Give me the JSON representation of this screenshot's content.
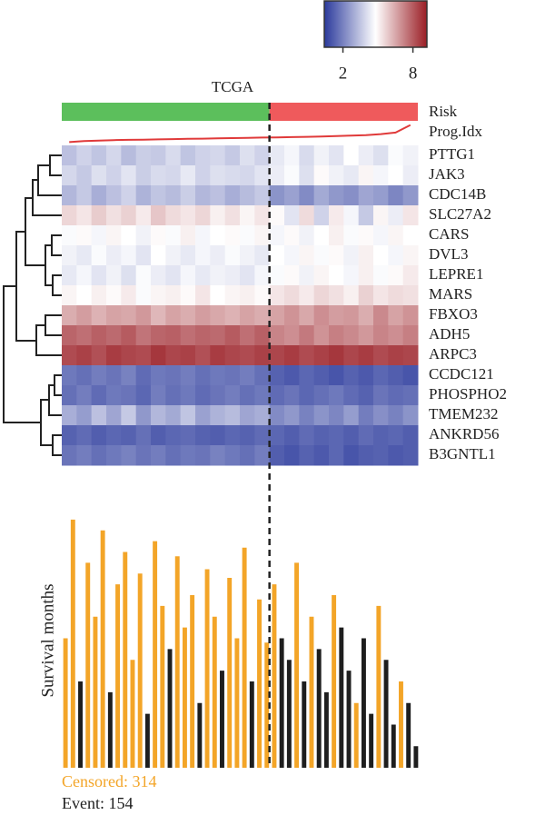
{
  "chart_data": {
    "type": "heatmap",
    "title": "TCGA",
    "colorbar": {
      "colors": [
        "#2b3a9c",
        "#ffffff",
        "#9a1d24"
      ],
      "lim": [
        0.4,
        9.2
      ],
      "ticks": [
        2,
        8
      ]
    },
    "risk": {
      "label": "Risk",
      "colors": [
        "#5cbf5c",
        "#ef5a5c"
      ],
      "low_risk_columns": 14
    },
    "prog_idx": {
      "label": "Prog.Idx",
      "color": "#e03a3a",
      "ylim": [
        -1,
        2.6
      ],
      "values": [
        -0.9,
        -0.7,
        -0.6,
        -0.5,
        -0.45,
        -0.4,
        -0.35,
        -0.3,
        -0.25,
        -0.2,
        -0.15,
        -0.1,
        -0.05,
        0,
        0.05,
        0.1,
        0.15,
        0.2,
        0.3,
        0.4,
        0.5,
        0.7,
        1.0,
        2.5
      ]
    },
    "genes": [
      "PTTG1",
      "JAK3",
      "CDC14B",
      "SLC27A2",
      "CARS",
      "DVL3",
      "LEPRE1",
      "MARS",
      "FBXO3",
      "ADH5",
      "ARPC3",
      "CCDC121",
      "PHOSPHO2",
      "TMEM232",
      "ANKRD56",
      "B3GNTL1"
    ],
    "values": [
      [
        3.4,
        3.8,
        3.5,
        3.9,
        3.3,
        3.7,
        3.6,
        4.0,
        3.5,
        3.8,
        3.9,
        3.6,
        4.1,
        3.8,
        4.3,
        4.6,
        4.0,
        4.5,
        4.2,
        4.8,
        4.4,
        4.1,
        4.7,
        4.5
      ],
      [
        3.9,
        3.6,
        4.1,
        3.8,
        4.2,
        3.7,
        4.0,
        3.9,
        4.3,
        3.8,
        4.1,
        4.0,
        3.9,
        4.2,
        4.4,
        4.7,
        4.1,
        4.9,
        4.5,
        4.3,
        5.0,
        4.6,
        4.8,
        4.4
      ],
      [
        3.2,
        3.6,
        3.0,
        3.4,
        3.8,
        3.1,
        3.5,
        3.3,
        3.7,
        3.2,
        3.4,
        3.0,
        3.3,
        3.6,
        2.4,
        2.7,
        2.2,
        2.9,
        2.5,
        2.3,
        2.8,
        2.6,
        2.1,
        2.5
      ],
      [
        5.6,
        5.3,
        5.8,
        5.4,
        5.7,
        5.2,
        5.9,
        5.5,
        5.3,
        5.6,
        5.1,
        5.4,
        5.0,
        5.3,
        4.9,
        4.2,
        5.5,
        3.8,
        5.2,
        4.6,
        3.6,
        5.0,
        4.4,
        5.3
      ],
      [
        4.7,
        4.9,
        4.6,
        5.0,
        4.8,
        4.5,
        4.9,
        4.7,
        5.1,
        4.6,
        4.8,
        4.9,
        4.7,
        5.0,
        4.6,
        4.9,
        4.5,
        4.8,
        5.1,
        4.7,
        4.9,
        4.6,
        5.0,
        4.8
      ],
      [
        4.5,
        4.3,
        4.7,
        4.4,
        4.6,
        4.2,
        4.8,
        4.5,
        4.3,
        4.6,
        4.4,
        4.7,
        4.5,
        4.3,
        4.8,
        4.6,
        5.0,
        4.7,
        4.9,
        4.5,
        5.1,
        4.8,
        4.6,
        5.0
      ],
      [
        4.3,
        4.6,
        4.2,
        4.5,
        4.1,
        4.7,
        4.4,
        4.2,
        4.6,
        4.3,
        4.5,
        4.4,
        4.2,
        4.6,
        4.7,
        4.9,
        4.5,
        5.0,
        4.8,
        4.6,
        5.1,
        4.7,
        4.9,
        5.2
      ],
      [
        5.0,
        4.8,
        5.1,
        4.9,
        5.2,
        4.7,
        5.0,
        5.1,
        4.9,
        5.3,
        4.8,
        5.0,
        5.1,
        4.9,
        5.3,
        5.5,
        5.2,
        5.6,
        5.4,
        5.1,
        5.7,
        5.3,
        5.5,
        5.4
      ],
      [
        6.4,
        6.7,
        6.3,
        6.6,
        6.5,
        6.8,
        6.2,
        6.6,
        6.4,
        6.7,
        6.5,
        6.3,
        6.6,
        6.4,
        6.6,
        6.9,
        6.5,
        7.0,
        6.7,
        6.8,
        6.4,
        7.1,
        6.6,
        6.9
      ],
      [
        7.8,
        7.6,
        7.9,
        7.7,
        8.0,
        7.5,
        7.8,
        7.9,
        7.6,
        7.8,
        7.7,
        8.0,
        7.6,
        7.9,
        7.2,
        7.0,
        7.4,
        6.9,
        7.3,
        7.1,
        6.8,
        7.2,
        7.0,
        7.3
      ],
      [
        8.3,
        8.5,
        8.2,
        8.6,
        8.4,
        8.3,
        8.7,
        8.4,
        8.5,
        8.2,
        8.6,
        8.4,
        8.3,
        8.5,
        8.4,
        8.6,
        8.3,
        8.5,
        8.7,
        8.4,
        8.6,
        8.3,
        8.5,
        8.4
      ],
      [
        1.8,
        1.6,
        1.9,
        1.7,
        2.0,
        1.5,
        1.8,
        1.7,
        1.9,
        1.6,
        1.8,
        1.7,
        1.9,
        1.6,
        1.3,
        1.1,
        1.4,
        1.2,
        1.0,
        1.3,
        1.1,
        1.4,
        1.2,
        1.0
      ],
      [
        1.6,
        1.9,
        1.5,
        1.8,
        1.7,
        1.4,
        1.9,
        1.6,
        1.8,
        1.5,
        1.7,
        1.9,
        1.6,
        1.8,
        1.5,
        1.7,
        1.4,
        1.6,
        1.8,
        1.5,
        1.3,
        1.7,
        1.5,
        1.6
      ],
      [
        3.0,
        2.6,
        3.4,
        2.8,
        3.6,
        2.5,
        3.2,
        2.9,
        3.5,
        2.7,
        3.1,
        3.3,
        2.8,
        3.0,
        2.2,
        2.5,
        2.0,
        2.4,
        2.1,
        2.6,
        1.9,
        2.3,
        2.0,
        2.4
      ],
      [
        1.3,
        1.5,
        1.2,
        1.4,
        1.3,
        1.6,
        1.2,
        1.4,
        1.5,
        1.3,
        1.2,
        1.4,
        1.3,
        1.5,
        1.4,
        1.2,
        1.5,
        1.3,
        1.4,
        1.2,
        1.5,
        1.3,
        1.4,
        1.2
      ],
      [
        1.7,
        1.9,
        1.6,
        1.8,
        2.0,
        1.7,
        1.9,
        1.6,
        1.8,
        1.7,
        2.0,
        1.8,
        1.6,
        1.9,
        1.2,
        1.0,
        1.3,
        1.1,
        1.4,
        1.0,
        1.2,
        1.3,
        1.1,
        1.2
      ]
    ],
    "survival": {
      "type": "bar",
      "ylabel": "Survival months",
      "ylim": [
        0,
        120
      ],
      "series": [
        {
          "name": "Censored: 314",
          "color": "#f3a528",
          "values": [
            60,
            115,
            null,
            95,
            70,
            110,
            null,
            85,
            100,
            50,
            90,
            null,
            105,
            75,
            null,
            98,
            65,
            80,
            null,
            92,
            70,
            null,
            88,
            60,
            102,
            null,
            78,
            58,
            85,
            null,
            null,
            95,
            null,
            70,
            null,
            null,
            80,
            null,
            null,
            30,
            null,
            null,
            75,
            null,
            null,
            40,
            null,
            null
          ]
        },
        {
          "name": "Event: 154",
          "color": "#1e1e1e",
          "values": [
            null,
            null,
            40,
            null,
            null,
            null,
            35,
            null,
            null,
            null,
            null,
            25,
            null,
            null,
            55,
            null,
            null,
            null,
            30,
            null,
            null,
            45,
            null,
            null,
            null,
            40,
            null,
            null,
            null,
            60,
            50,
            null,
            40,
            null,
            55,
            35,
            null,
            65,
            45,
            null,
            60,
            25,
            null,
            50,
            20,
            null,
            30,
            10
          ]
        }
      ]
    }
  }
}
